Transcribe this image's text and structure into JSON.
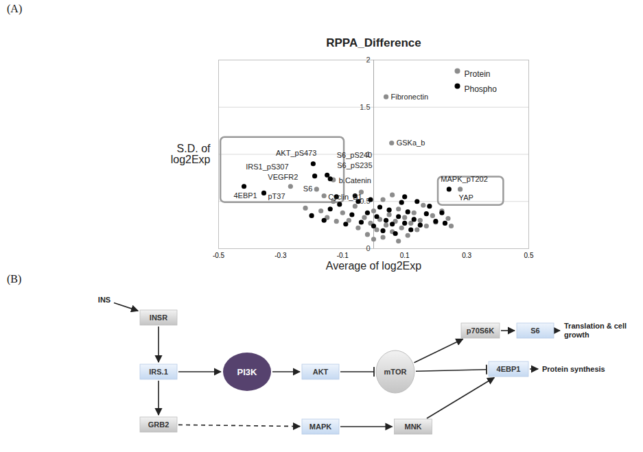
{
  "panel_labels": [
    "(A)",
    "(B)"
  ],
  "chart_data": {
    "type": "scatter",
    "title": "RPPA_Difference",
    "x_label": "Average of log2Exp",
    "y_label": "S.D. of log2Exp",
    "xlim": [
      -0.5,
      0.5
    ],
    "xticks": [
      -0.5,
      -0.3,
      -0.1,
      0.1,
      0.3,
      0.5
    ],
    "ylim": [
      0,
      2
    ],
    "yticks": [
      0,
      0.5,
      1,
      1.5,
      2
    ],
    "grid": true,
    "legend": "top-right",
    "boxes": [
      [
        "IRS1_pS307",
        "AKT_pS473",
        "S6_pS240",
        "S6_pS235",
        "VEGFR2",
        "b.Catenin",
        "S6",
        "Cyclin_B1",
        "4EBP1",
        "pT37"
      ],
      [
        "MAPK_pT202",
        "YAP"
      ]
    ],
    "series": [
      {
        "name": "Protein",
        "color": "#8c8c8c",
        "marker": "circle",
        "points": [
          {
            "x": 0.04,
            "y": 1.61,
            "label": "Fibronectin"
          },
          {
            "x": 0.058,
            "y": 1.12,
            "label": "GSKa_b"
          },
          {
            "x": -0.268,
            "y": 0.66,
            "label": "VEGFR2"
          },
          {
            "x": -0.184,
            "y": 0.63,
            "label": "S6"
          },
          {
            "x": -0.13,
            "y": 0.73,
            "label": "b.Catenin"
          },
          {
            "x": -0.16,
            "y": 0.56,
            "label": "Cyclin_B1"
          },
          {
            "x": 0.279,
            "y": 0.63,
            "label": "YAP"
          },
          {
            "x": -0.22,
            "y": 0.43
          },
          {
            "x": -0.17,
            "y": 0.4
          },
          {
            "x": -0.13,
            "y": 0.5
          },
          {
            "x": -0.1,
            "y": 0.38
          },
          {
            "x": -0.08,
            "y": 0.3
          },
          {
            "x": -0.06,
            "y": 0.45
          },
          {
            "x": -0.05,
            "y": 0.22
          },
          {
            "x": -0.03,
            "y": 0.33
          },
          {
            "x": -0.02,
            "y": 0.15
          },
          {
            "x": -0.01,
            "y": 0.27
          },
          {
            "x": 0.0,
            "y": 0.4
          },
          {
            "x": 0.01,
            "y": 0.2
          },
          {
            "x": 0.02,
            "y": 0.31
          },
          {
            "x": 0.03,
            "y": 0.12
          },
          {
            "x": 0.03,
            "y": 0.52
          },
          {
            "x": 0.04,
            "y": 0.25
          },
          {
            "x": 0.05,
            "y": 0.36
          },
          {
            "x": 0.06,
            "y": 0.18
          },
          {
            "x": 0.07,
            "y": 0.29
          },
          {
            "x": 0.08,
            "y": 0.42
          },
          {
            "x": 0.09,
            "y": 0.22
          },
          {
            "x": 0.1,
            "y": 0.33
          },
          {
            "x": 0.11,
            "y": 0.14
          },
          {
            "x": 0.12,
            "y": 0.27
          },
          {
            "x": 0.13,
            "y": 0.38
          },
          {
            "x": 0.14,
            "y": 0.2
          },
          {
            "x": 0.15,
            "y": 0.3
          },
          {
            "x": 0.16,
            "y": 0.46
          },
          {
            "x": 0.17,
            "y": 0.24
          },
          {
            "x": 0.19,
            "y": 0.35
          },
          {
            "x": 0.2,
            "y": 0.28
          },
          {
            "x": 0.22,
            "y": 0.4
          },
          {
            "x": 0.24,
            "y": 0.32
          },
          {
            "x": 0.25,
            "y": 0.24
          },
          {
            "x": -0.04,
            "y": 0.6
          },
          {
            "x": 0.06,
            "y": 0.57
          },
          {
            "x": -0.12,
            "y": 0.29
          },
          {
            "x": -0.15,
            "y": 0.33
          },
          {
            "x": 0.0,
            "y": 0.1
          },
          {
            "x": 0.08,
            "y": 0.08
          }
        ]
      },
      {
        "name": "Phospho",
        "color": "#000000",
        "marker": "circle",
        "points": [
          {
            "x": -0.195,
            "y": 0.9,
            "label": "AKT_pS473"
          },
          {
            "x": -0.19,
            "y": 0.77,
            "label": "IRS1_pS307"
          },
          {
            "x": -0.15,
            "y": 0.78,
            "label": "S6_pS240"
          },
          {
            "x": -0.14,
            "y": 0.74,
            "label": "S6_pS235"
          },
          {
            "x": -0.418,
            "y": 0.66,
            "label": "4EBP1"
          },
          {
            "x": -0.354,
            "y": 0.59,
            "label": "pT37"
          },
          {
            "x": 0.243,
            "y": 0.63,
            "label": "MAPK_pT202"
          },
          {
            "x": -0.2,
            "y": 0.35
          },
          {
            "x": -0.16,
            "y": 0.3
          },
          {
            "x": -0.14,
            "y": 0.42
          },
          {
            "x": -0.11,
            "y": 0.47
          },
          {
            "x": -0.09,
            "y": 0.26
          },
          {
            "x": -0.07,
            "y": 0.36
          },
          {
            "x": -0.05,
            "y": 0.5
          },
          {
            "x": -0.04,
            "y": 0.28
          },
          {
            "x": -0.02,
            "y": 0.38
          },
          {
            "x": -0.01,
            "y": 0.52
          },
          {
            "x": 0.0,
            "y": 0.24
          },
          {
            "x": 0.01,
            "y": 0.34
          },
          {
            "x": 0.02,
            "y": 0.44
          },
          {
            "x": 0.03,
            "y": 0.19
          },
          {
            "x": 0.04,
            "y": 0.3
          },
          {
            "x": 0.05,
            "y": 0.41
          },
          {
            "x": 0.06,
            "y": 0.26
          },
          {
            "x": 0.07,
            "y": 0.16
          },
          {
            "x": 0.08,
            "y": 0.34
          },
          {
            "x": 0.09,
            "y": 0.49
          },
          {
            "x": 0.1,
            "y": 0.27
          },
          {
            "x": 0.11,
            "y": 0.39
          },
          {
            "x": 0.12,
            "y": 0.2
          },
          {
            "x": 0.13,
            "y": 0.31
          },
          {
            "x": 0.14,
            "y": 0.5
          },
          {
            "x": 0.15,
            "y": 0.25
          },
          {
            "x": 0.17,
            "y": 0.37
          },
          {
            "x": 0.18,
            "y": 0.45
          },
          {
            "x": 0.2,
            "y": 0.29
          },
          {
            "x": 0.22,
            "y": 0.38
          },
          {
            "x": 0.23,
            "y": 0.27
          },
          {
            "x": -0.06,
            "y": 0.56
          },
          {
            "x": -0.12,
            "y": 0.55
          },
          {
            "x": 0.1,
            "y": 0.55
          }
        ]
      }
    ]
  },
  "diagram": {
    "nodes": [
      {
        "label": "INS",
        "kind": "text"
      },
      {
        "label": "INSR",
        "kind": "gray"
      },
      {
        "label": "IRS.1",
        "kind": "blue"
      },
      {
        "label": "PI3K",
        "kind": "ellipse"
      },
      {
        "label": "AKT",
        "kind": "blue"
      },
      {
        "label": "mTOR",
        "kind": "circle"
      },
      {
        "label": "p70S6K",
        "kind": "gray"
      },
      {
        "label": "S6",
        "kind": "blue"
      },
      {
        "label": "Translation & cell growth",
        "kind": "text"
      },
      {
        "label": "4EBP1",
        "kind": "blue"
      },
      {
        "label": "Protein synthesis",
        "kind": "text"
      },
      {
        "label": "GRB2",
        "kind": "gray"
      },
      {
        "label": "MAPK",
        "kind": "blue"
      },
      {
        "label": "MNK",
        "kind": "gray"
      }
    ],
    "edges": [
      {
        "from": 0,
        "to": 1,
        "kind": "activate"
      },
      {
        "from": 1,
        "to": 2,
        "kind": "activate"
      },
      {
        "from": 2,
        "to": 3,
        "kind": "activate"
      },
      {
        "from": 3,
        "to": 4,
        "kind": "activate"
      },
      {
        "from": 4,
        "to": 5,
        "kind": "inhibit"
      },
      {
        "from": 5,
        "to": 6,
        "kind": "activate"
      },
      {
        "from": 6,
        "to": 7,
        "kind": "activate"
      },
      {
        "from": 7,
        "to": 8,
        "kind": "activate"
      },
      {
        "from": 5,
        "to": 9,
        "kind": "inhibit"
      },
      {
        "from": 9,
        "to": 10,
        "kind": "activate"
      },
      {
        "from": 2,
        "to": 11,
        "kind": "activate"
      },
      {
        "from": 11,
        "to": 12,
        "kind": "dashed"
      },
      {
        "from": 12,
        "to": 13,
        "kind": "activate"
      },
      {
        "from": 13,
        "to": 9,
        "kind": "activate"
      }
    ]
  }
}
